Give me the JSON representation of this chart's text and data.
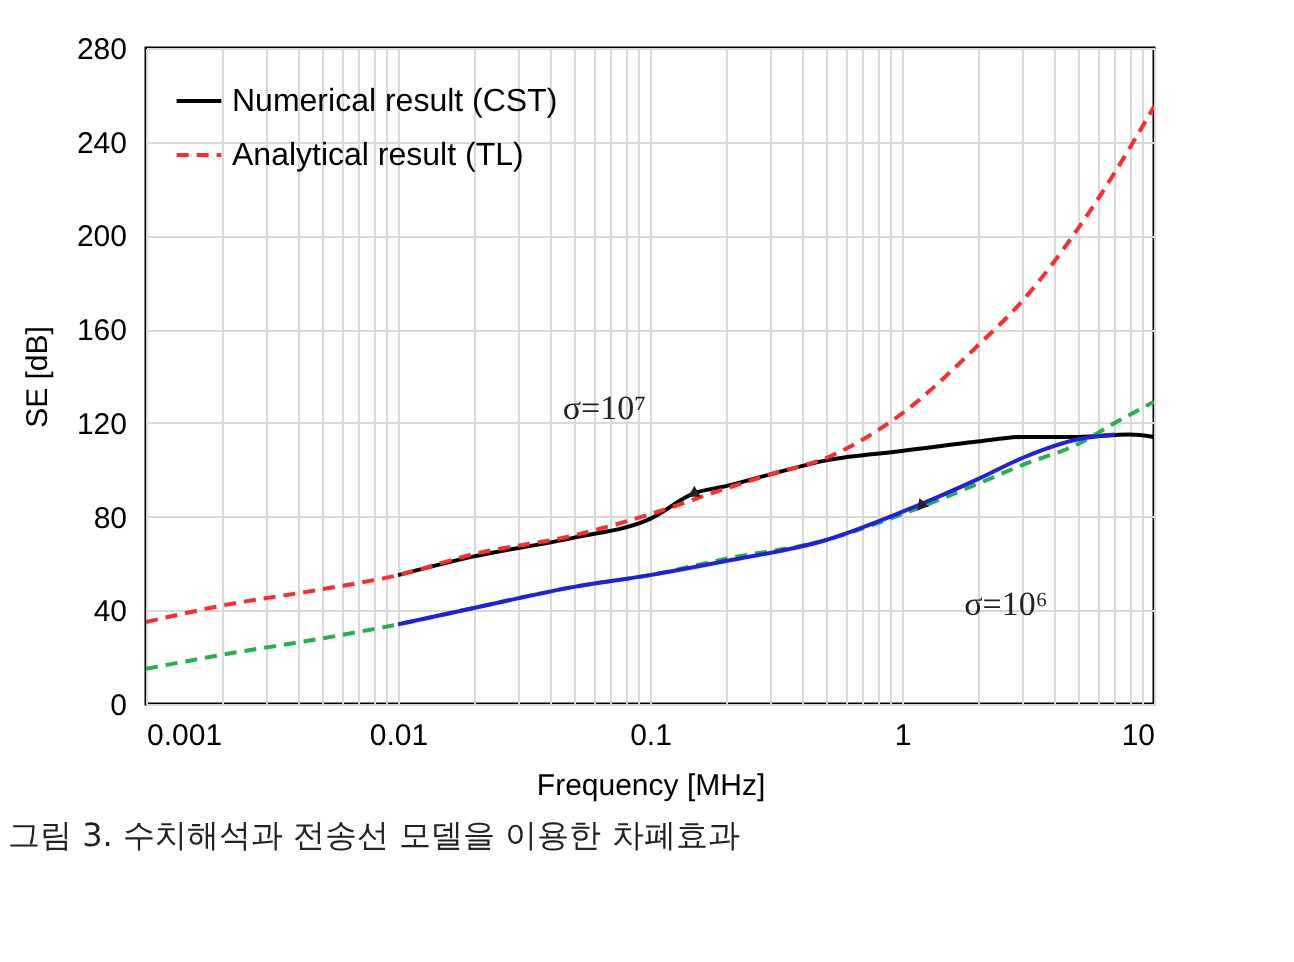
{
  "chart_data": {
    "type": "line",
    "xlabel": "Frequency [MHz]",
    "ylabel": "SE [dB]",
    "log": "x",
    "grid": true,
    "legend": "top left",
    "xlim": [
      0.001,
      10
    ],
    "ylim": [
      0,
      280
    ],
    "xticks": [
      {
        "value": 0.001,
        "label": "0.001"
      },
      {
        "value": 0.002,
        "label": null
      },
      {
        "value": 0.003,
        "label": null
      },
      {
        "value": 0.004,
        "label": null
      },
      {
        "value": 0.005,
        "label": null
      },
      {
        "value": 0.006,
        "label": null
      },
      {
        "value": 0.007,
        "label": null
      },
      {
        "value": 0.008,
        "label": null
      },
      {
        "value": 0.009,
        "label": null
      },
      {
        "value": 0.01,
        "label": "0.01"
      },
      {
        "value": 0.02,
        "label": null
      },
      {
        "value": 0.03,
        "label": null
      },
      {
        "value": 0.04,
        "label": null
      },
      {
        "value": 0.05,
        "label": null
      },
      {
        "value": 0.06,
        "label": null
      },
      {
        "value": 0.07,
        "label": null
      },
      {
        "value": 0.08,
        "label": null
      },
      {
        "value": 0.09,
        "label": null
      },
      {
        "value": 0.1,
        "label": "0.1"
      },
      {
        "value": 0.2,
        "label": null
      },
      {
        "value": 0.3,
        "label": null
      },
      {
        "value": 0.4,
        "label": null
      },
      {
        "value": 0.5,
        "label": null
      },
      {
        "value": 0.6,
        "label": null
      },
      {
        "value": 0.7,
        "label": null
      },
      {
        "value": 0.8,
        "label": null
      },
      {
        "value": 0.9,
        "label": null
      },
      {
        "value": 1,
        "label": "1"
      },
      {
        "value": 2,
        "label": null
      },
      {
        "value": 3,
        "label": null
      },
      {
        "value": 4,
        "label": null
      },
      {
        "value": 5,
        "label": null
      },
      {
        "value": 6,
        "label": null
      },
      {
        "value": 7,
        "label": null
      },
      {
        "value": 8,
        "label": null
      },
      {
        "value": 9,
        "label": null
      },
      {
        "value": 10,
        "label": "10"
      }
    ],
    "yticks": [
      0,
      40,
      80,
      120,
      160,
      200,
      240,
      280
    ],
    "series": [
      {
        "name": "Numerical result (CST)",
        "color": "#000000",
        "line_style": "solid",
        "x": [
          0.01,
          0.02,
          0.05,
          0.1,
          0.15,
          0.2,
          0.3,
          0.5,
          1,
          2,
          3,
          5,
          8,
          10
        ],
        "values": [
          55,
          63,
          71,
          79,
          90,
          93,
          98,
          104,
          108,
          112,
          114,
          114,
          115,
          114
        ]
      },
      {
        "name": "Analytical result (TL)",
        "color": "#ff2a2a",
        "line_style": "dashed",
        "x": [
          0.001,
          0.002,
          0.005,
          0.01,
          0.02,
          0.05,
          0.1,
          0.2,
          0.3,
          0.5,
          1,
          2,
          3,
          5,
          7,
          10
        ],
        "values": [
          35,
          42,
          49,
          55,
          64,
          72,
          81,
          92,
          98,
          105,
          124,
          153,
          172,
          203,
          227,
          255
        ]
      },
      {
        "color": "#22b14c",
        "line_style": "dashed",
        "x": [
          0.001,
          0.002,
          0.005,
          0.01,
          0.02,
          0.05,
          0.1,
          0.2,
          0.5,
          1,
          2,
          3,
          5,
          7,
          10
        ],
        "values": [
          15,
          21,
          28,
          34,
          41,
          50,
          55,
          62,
          70,
          81,
          94,
          102,
          111,
          120,
          129
        ]
      },
      {
        "color": "#2020e0",
        "line_style": "solid",
        "x": [
          0.01,
          0.02,
          0.05,
          0.1,
          0.2,
          0.5,
          1,
          2,
          3,
          5,
          7
        ],
        "values": [
          34,
          41,
          50,
          55,
          61,
          70,
          82,
          96,
          105,
          113,
          115
        ]
      }
    ],
    "annotations": [
      {
        "text": "σ=10⁷",
        "x": 0.15,
        "y": 90
      },
      {
        "text": "σ=10⁶",
        "x": 1.2,
        "y": 85
      },
      "그림 3. 수치해석과 전송선 모델을 이용한 차폐효과"
    ]
  }
}
